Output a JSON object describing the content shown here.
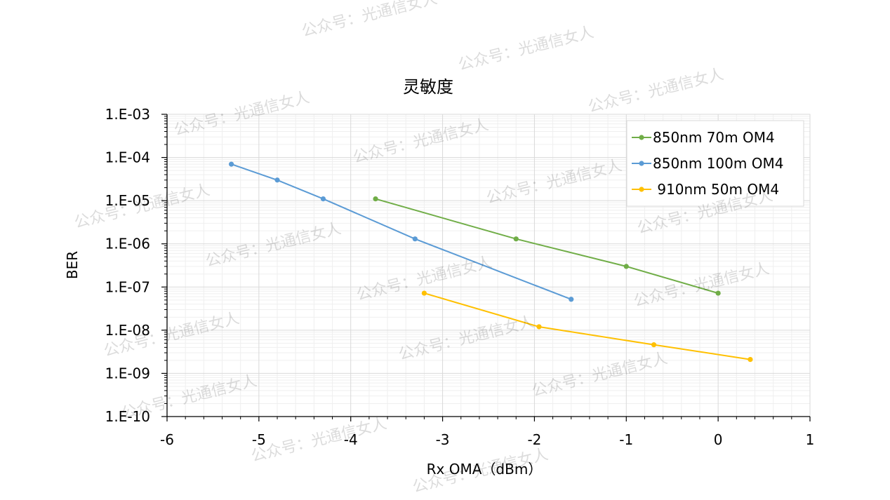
{
  "chart_data": {
    "type": "line",
    "title": "灵敏度",
    "xlabel": "Rx OMA（dBm）",
    "ylabel": "BER",
    "xlim": [
      -6,
      1
    ],
    "ylim": [
      1e-10,
      0.001
    ],
    "y_scale": "log",
    "x_ticks": [
      "-6",
      "-5",
      "-4",
      "-3",
      "-2",
      "-1",
      "0",
      "1"
    ],
    "y_ticks": [
      "1.E-03",
      "1.E-04",
      "1.E-05",
      "1.E-06",
      "1.E-07",
      "1.E-08",
      "1.E-09",
      "1.E-10"
    ],
    "grid": true,
    "legend_position": "top-right",
    "series": [
      {
        "name": "850nm 70m OM4",
        "color": "#70ad47",
        "points": [
          [
            -3.73,
            1.1e-05
          ],
          [
            -2.2,
            1.3e-06
          ],
          [
            -1.0,
            3e-07
          ],
          [
            0.0,
            7.2e-08
          ]
        ]
      },
      {
        "name": "850nm 100m OM4",
        "color": "#5b9bd5",
        "points": [
          [
            -5.3,
            7e-05
          ],
          [
            -4.8,
            3e-05
          ],
          [
            -4.3,
            1.1e-05
          ],
          [
            -3.3,
            1.3e-06
          ],
          [
            -1.6,
            5.2e-08
          ]
        ]
      },
      {
        "name": " 910nm 50m OM4",
        "color": "#ffc000",
        "points": [
          [
            -3.2,
            7.2e-08
          ],
          [
            -1.95,
            1.2e-08
          ],
          [
            -0.7,
            4.6e-09
          ],
          [
            0.35,
            2.1e-09
          ]
        ]
      }
    ]
  },
  "watermark": "公众号：光通信女人"
}
